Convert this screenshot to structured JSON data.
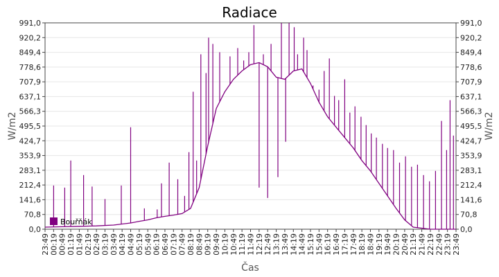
{
  "chart_data": {
    "type": "line",
    "title": "Radiace",
    "xlabel": "Čas",
    "ylabel_left": "W/m2",
    "ylabel_right": "W/m2",
    "ylim": [
      0,
      991.0
    ],
    "y_ticks": [
      "0,0",
      "70,8",
      "141,6",
      "212,4",
      "283,1",
      "353,9",
      "424,7",
      "495,5",
      "566,3",
      "637,1",
      "707,9",
      "778,6",
      "849,4",
      "920,2",
      "991,0"
    ],
    "x_ticks": [
      "23:49",
      "00:19",
      "00:49",
      "01:19",
      "01:49",
      "02:19",
      "02:49",
      "03:19",
      "03:49",
      "04:19",
      "04:49",
      "05:19",
      "05:49",
      "06:19",
      "06:49",
      "07:19",
      "07:49",
      "08:19",
      "08:49",
      "09:19",
      "09:49",
      "10:19",
      "10:49",
      "11:19",
      "11:49",
      "12:19",
      "12:49",
      "13:19",
      "13:49",
      "14:19",
      "14:49",
      "15:19",
      "15:49",
      "16:19",
      "16:49",
      "17:19",
      "17:49",
      "18:19",
      "18:49",
      "19:19",
      "19:49",
      "20:19",
      "20:49",
      "21:19",
      "21:49",
      "22:19",
      "22:49",
      "23:19",
      "23:49"
    ],
    "grid": true,
    "legend_position": "bottom-left",
    "series": [
      {
        "name": "Bouřňák",
        "color": "#800080",
        "baseline": [
          [
            0,
            10
          ],
          [
            2,
            12
          ],
          [
            4,
            14
          ],
          [
            6,
            16
          ],
          [
            8,
            20
          ],
          [
            10,
            30
          ],
          [
            11,
            38
          ],
          [
            12,
            45
          ],
          [
            13,
            55
          ],
          [
            14,
            62
          ],
          [
            15,
            68
          ],
          [
            16,
            75
          ],
          [
            17,
            100
          ],
          [
            18,
            200
          ],
          [
            19,
            400
          ],
          [
            20,
            580
          ],
          [
            21,
            660
          ],
          [
            22,
            720
          ],
          [
            23,
            760
          ],
          [
            24,
            790
          ],
          [
            25,
            800
          ],
          [
            26,
            780
          ],
          [
            27,
            730
          ],
          [
            28,
            720
          ],
          [
            29,
            760
          ],
          [
            30,
            770
          ],
          [
            31,
            700
          ],
          [
            32,
            610
          ],
          [
            33,
            540
          ],
          [
            34,
            490
          ],
          [
            35,
            440
          ],
          [
            36,
            390
          ],
          [
            37,
            330
          ],
          [
            38,
            280
          ],
          [
            39,
            220
          ],
          [
            40,
            160
          ],
          [
            41,
            100
          ],
          [
            42,
            45
          ],
          [
            43,
            10
          ],
          [
            44,
            5
          ],
          [
            45,
            0
          ],
          [
            46,
            0
          ],
          [
            47,
            0
          ],
          [
            48,
            0
          ]
        ],
        "spikes": [
          [
            1,
            210
          ],
          [
            2.3,
            200
          ],
          [
            3,
            330
          ],
          [
            4.5,
            260
          ],
          [
            5.5,
            205
          ],
          [
            7,
            145
          ],
          [
            8.9,
            210
          ],
          [
            10,
            490
          ],
          [
            11.6,
            100
          ],
          [
            13.1,
            95
          ],
          [
            13.6,
            220
          ],
          [
            14.5,
            320
          ],
          [
            15.5,
            240
          ],
          [
            16.3,
            160
          ],
          [
            16.8,
            370
          ],
          [
            17.3,
            660
          ],
          [
            17.7,
            330
          ],
          [
            18.2,
            840
          ],
          [
            18.8,
            750
          ],
          [
            19.1,
            920
          ],
          [
            19.6,
            890
          ],
          [
            20.4,
            850
          ],
          [
            21.6,
            830
          ],
          [
            22.5,
            870
          ],
          [
            23.2,
            810
          ],
          [
            23.8,
            850
          ],
          [
            24.4,
            980
          ],
          [
            25,
            200
          ],
          [
            25.5,
            840
          ],
          [
            26,
            150
          ],
          [
            26.4,
            890
          ],
          [
            27.2,
            250
          ],
          [
            27.6,
            990
          ],
          [
            28.1,
            420
          ],
          [
            28.5,
            990
          ],
          [
            29.1,
            970
          ],
          [
            29.5,
            840
          ],
          [
            30.2,
            920
          ],
          [
            30.6,
            860
          ],
          [
            31.3,
            690
          ],
          [
            32,
            670
          ],
          [
            32.6,
            760
          ],
          [
            33.2,
            820
          ],
          [
            33.8,
            640
          ],
          [
            34.3,
            620
          ],
          [
            35,
            720
          ],
          [
            35.6,
            560
          ],
          [
            36.2,
            590
          ],
          [
            36.9,
            540
          ],
          [
            37.5,
            500
          ],
          [
            38.1,
            460
          ],
          [
            38.7,
            440
          ],
          [
            39.4,
            410
          ],
          [
            40,
            390
          ],
          [
            40.7,
            380
          ],
          [
            41.4,
            320
          ],
          [
            42.1,
            350
          ],
          [
            42.8,
            300
          ],
          [
            43.5,
            310
          ],
          [
            44.2,
            260
          ],
          [
            44.9,
            230
          ],
          [
            45.6,
            280
          ],
          [
            46.3,
            520
          ],
          [
            46.9,
            380
          ],
          [
            47.3,
            620
          ],
          [
            47.7,
            450
          ]
        ]
      }
    ]
  }
}
